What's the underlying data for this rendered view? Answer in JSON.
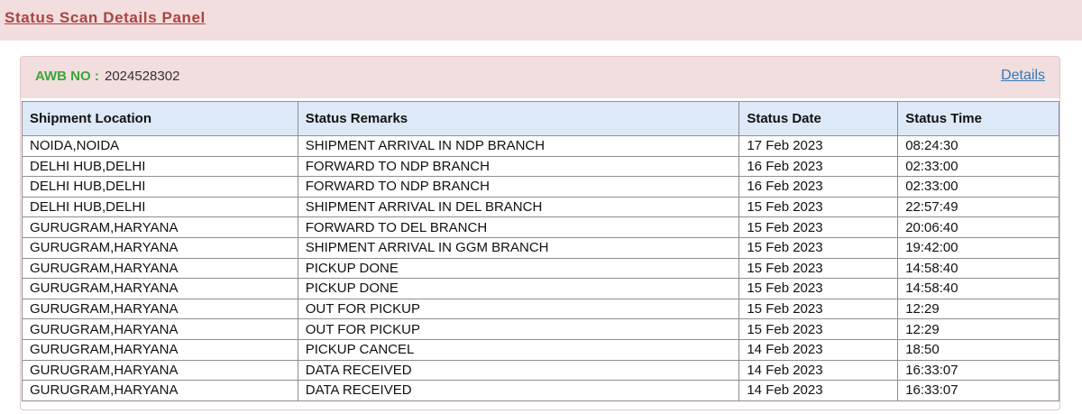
{
  "header": {
    "title": "Status Scan Details Panel"
  },
  "awb": {
    "label": "AWB NO :",
    "number": "2024528302",
    "details_link": "Details"
  },
  "table": {
    "columns": [
      "Shipment Location",
      "Status Remarks",
      "Status Date",
      "Status Time"
    ],
    "rows": [
      [
        "NOIDA,NOIDA",
        "SHIPMENT ARRIVAL IN NDP BRANCH",
        "17 Feb 2023",
        "08:24:30"
      ],
      [
        "DELHI HUB,DELHI",
        "FORWARD TO NDP BRANCH",
        "16 Feb 2023",
        "02:33:00"
      ],
      [
        "DELHI HUB,DELHI",
        "FORWARD TO NDP BRANCH",
        "16 Feb 2023",
        "02:33:00"
      ],
      [
        "DELHI HUB,DELHI",
        "SHIPMENT ARRIVAL IN DEL BRANCH",
        "15 Feb 2023",
        "22:57:49"
      ],
      [
        "GURUGRAM,HARYANA",
        "FORWARD TO DEL BRANCH",
        "15 Feb 2023",
        "20:06:40"
      ],
      [
        "GURUGRAM,HARYANA",
        "SHIPMENT ARRIVAL IN GGM BRANCH",
        "15 Feb 2023",
        "19:42:00"
      ],
      [
        "GURUGRAM,HARYANA",
        "PICKUP DONE",
        "15 Feb 2023",
        "14:58:40"
      ],
      [
        "GURUGRAM,HARYANA",
        "PICKUP DONE",
        "15 Feb 2023",
        "14:58:40"
      ],
      [
        "GURUGRAM,HARYANA",
        "OUT FOR PICKUP",
        "15 Feb 2023",
        "12:29"
      ],
      [
        "GURUGRAM,HARYANA",
        "OUT FOR PICKUP",
        "15 Feb 2023",
        "12:29"
      ],
      [
        "GURUGRAM,HARYANA",
        "PICKUP CANCEL",
        "14 Feb 2023",
        "18:50"
      ],
      [
        "GURUGRAM,HARYANA",
        "DATA RECEIVED",
        "14 Feb 2023",
        "16:33:07"
      ],
      [
        "GURUGRAM,HARYANA",
        "DATA RECEIVED",
        "14 Feb 2023",
        "16:33:07"
      ]
    ]
  },
  "colors": {
    "title_red": "#a94442",
    "panel_pink": "#f2dede",
    "awb_green": "#3aa53a",
    "link_blue": "#337ab7",
    "header_row_blue": "#dde9f7"
  }
}
